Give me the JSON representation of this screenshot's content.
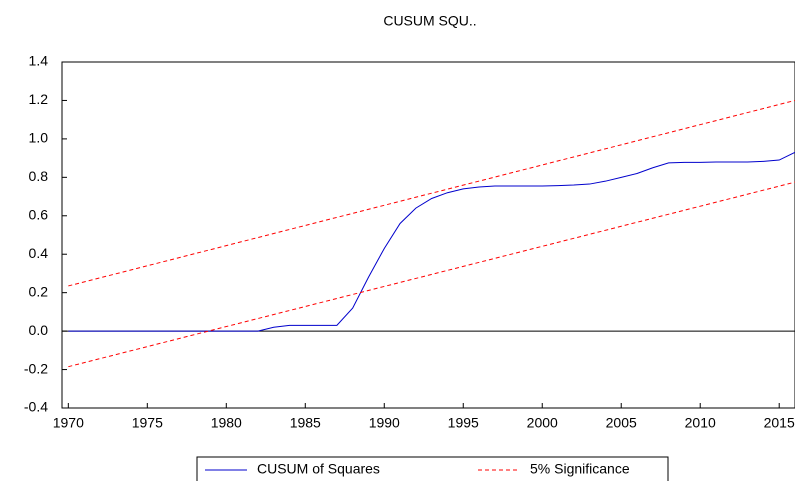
{
  "chart_data": {
    "type": "line",
    "title": "CUSUM SQU..",
    "x": [
      1970,
      1971,
      1972,
      1973,
      1974,
      1975,
      1976,
      1977,
      1978,
      1979,
      1980,
      1981,
      1982,
      1983,
      1984,
      1985,
      1986,
      1987,
      1988,
      1989,
      1990,
      1991,
      1992,
      1993,
      1994,
      1995,
      1996,
      1997,
      1998,
      1999,
      2000,
      2001,
      2002,
      2003,
      2004,
      2005,
      2006,
      2007,
      2008,
      2009,
      2010,
      2011,
      2012,
      2013,
      2014,
      2015,
      2016
    ],
    "series": [
      {
        "name": "CUSUM of Squares",
        "color": "#0000cc",
        "values": [
          0,
          0,
          0,
          0,
          0,
          0,
          0,
          0,
          0,
          0,
          0,
          0,
          0,
          0.02,
          0.03,
          0.03,
          0.03,
          0.03,
          0.12,
          0.28,
          0.43,
          0.56,
          0.64,
          0.69,
          0.72,
          0.74,
          0.75,
          0.755,
          0.755,
          0.755,
          0.755,
          0.757,
          0.76,
          0.765,
          0.78,
          0.8,
          0.82,
          0.85,
          0.875,
          0.878,
          0.878,
          0.88,
          0.88,
          0.88,
          0.883,
          0.89,
          0.93
        ]
      },
      {
        "name": "5% Significance",
        "color": "#ff0000",
        "dashed": true,
        "x": [
          1970,
          2016
        ],
        "upper": [
          0.235,
          1.2
        ],
        "lower": [
          -0.185,
          0.775
        ]
      }
    ],
    "xlim": [
      1969.6,
      2016
    ],
    "xticks": [
      1970,
      1975,
      1980,
      1985,
      1990,
      1995,
      2000,
      2005,
      2010,
      2015
    ],
    "ylim": [
      -0.4,
      1.4
    ],
    "yticks": [
      {
        "value": -0.4,
        "label": "-0.4"
      },
      {
        "value": -0.2,
        "label": "-0.2"
      },
      {
        "value": 0,
        "label": "0.0"
      },
      {
        "value": 0.2,
        "label": "0.2"
      },
      {
        "value": 0.4,
        "label": "0.4"
      },
      {
        "value": 0.6,
        "label": "0.6"
      },
      {
        "value": 0.8,
        "label": "0.8"
      },
      {
        "value": 1,
        "label": "1.0"
      },
      {
        "value": 1.2,
        "label": "1.2"
      },
      {
        "value": 1.4,
        "label": "1.4"
      }
    ],
    "zero_line": true,
    "legend": "bottom"
  }
}
